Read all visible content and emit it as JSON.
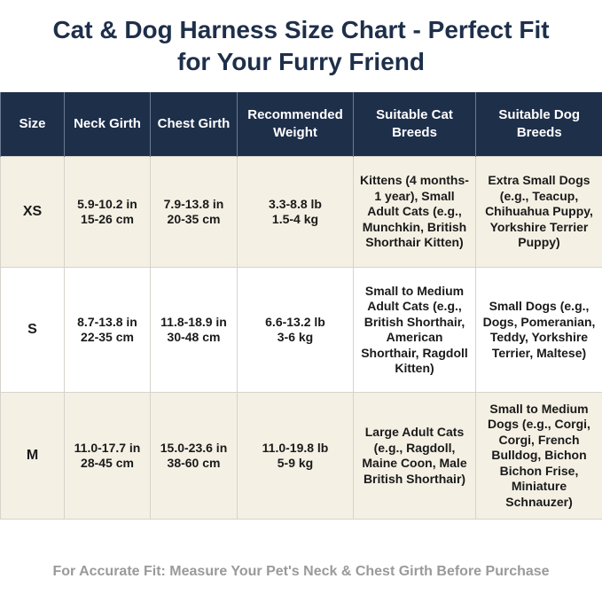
{
  "title": "Cat & Dog Harness Size Chart - Perfect Fit for Your Furry Friend",
  "table": {
    "header": [
      "Size",
      "Neck Girth",
      "Chest Girth",
      "Recommended Weight",
      "Suitable Cat Breeds",
      "Suitable Dog Breeds"
    ],
    "rows": [
      [
        "XS",
        "5.9-10.2 in\n15-26 cm",
        "7.9-13.8 in\n20-35 cm",
        "3.3-8.8 lb\n1.5-4 kg",
        "Kittens (4 months-1 year), Small Adult Cats (e.g., Munchkin, British Shorthair Kitten)",
        "Extra Small Dogs (e.g., Teacup, Chihuahua Puppy, Yorkshire Terrier Puppy)"
      ],
      [
        "S",
        "8.7-13.8 in\n22-35 cm",
        "11.8-18.9 in\n30-48 cm",
        "6.6-13.2 lb\n3-6 kg",
        "Small to Medium Adult Cats (e.g., British Shorthair, American Shorthair, Ragdoll Kitten)",
        "Small Dogs (e.g., Dogs, Pomeranian, Teddy, Yorkshire Terrier, Maltese)"
      ],
      [
        "M",
        "11.0-17.7 in\n28-45 cm",
        "15.0-23.6 in\n38-60 cm",
        "11.0-19.8 lb\n5-9 kg",
        "Large Adult Cats (e.g., Ragdoll, Maine Coon, Male British Shorthair)",
        "Small to Medium Dogs (e.g., Corgi, Corgi, French Bulldog, Bichon Bichon Frise, Miniature Schnauzer)"
      ]
    ]
  },
  "footer": "For Accurate Fit: Measure Your Pet's Neck & Chest Girth Before Purchase"
}
